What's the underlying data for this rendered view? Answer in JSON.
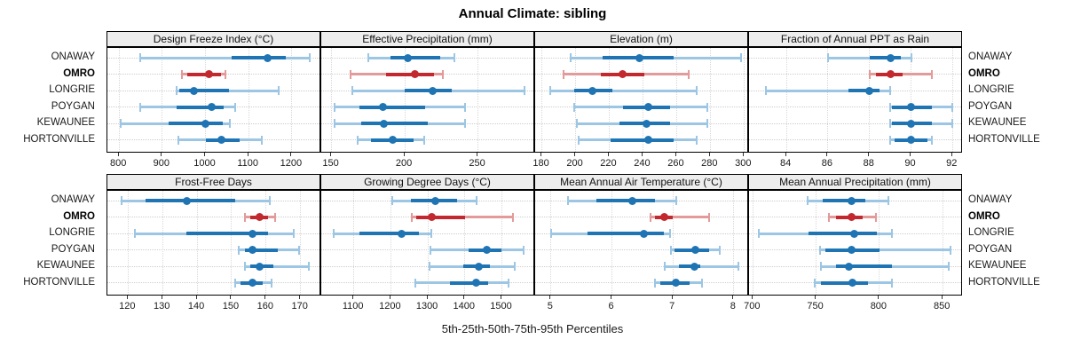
{
  "title": "Annual Climate: sibling",
  "xlabel": "5th-25th-50th-75th-95th Percentiles",
  "sites": [
    "ONAWAY",
    "OMRO",
    "LONGRIE",
    "POYGAN",
    "KEWAUNEE",
    "HORTONVILLE"
  ],
  "highlight_site": "OMRO",
  "colors": {
    "blue_dark": "#1F74B4",
    "blue_light": "#9CC6E3",
    "red_dark": "#C2282D",
    "red_light": "#E39A9A",
    "strip_bg": "#EDEDED",
    "border": "#000000",
    "gridline": "#D8D8D8"
  },
  "chart_data": [
    {
      "type": "percentile-dotplot",
      "label": "Design Freeze Index (°C)",
      "xlim": [
        773,
        1268
      ],
      "ticks": [
        800,
        900,
        1000,
        1100,
        1200
      ],
      "series": [
        {
          "site": "ONAWAY",
          "p5": 848,
          "p25": 1060,
          "p50": 1143,
          "p75": 1186,
          "p95": 1242
        },
        {
          "site": "OMRO",
          "p5": 945,
          "p25": 957,
          "p50": 1008,
          "p75": 1036,
          "p95": 1046
        },
        {
          "site": "LONGRIE",
          "p5": 934,
          "p25": 940,
          "p50": 973,
          "p75": 1055,
          "p95": 1170
        },
        {
          "site": "POYGAN",
          "p5": 848,
          "p25": 934,
          "p50": 1014,
          "p75": 1042,
          "p95": 1068
        },
        {
          "site": "KEWAUNEE",
          "p5": 804,
          "p25": 914,
          "p50": 1000,
          "p75": 1040,
          "p95": 1056
        },
        {
          "site": "HORTONVILLE",
          "p5": 938,
          "p25": 1000,
          "p50": 1037,
          "p75": 1080,
          "p95": 1130
        }
      ]
    },
    {
      "type": "percentile-dotplot",
      "label": "Effective Precipitation (mm)",
      "xlim": [
        143,
        289
      ],
      "ticks": [
        150,
        200,
        250
      ],
      "series": [
        {
          "site": "ONAWAY",
          "p5": 175,
          "p25": 190,
          "p50": 202,
          "p75": 224,
          "p95": 234
        },
        {
          "site": "OMRO",
          "p5": 163,
          "p25": 187,
          "p50": 207,
          "p75": 220,
          "p95": 226
        },
        {
          "site": "LONGRIE",
          "p5": 164,
          "p25": 200,
          "p50": 219,
          "p75": 232,
          "p95": 282
        },
        {
          "site": "POYGAN",
          "p5": 152,
          "p25": 169,
          "p50": 185,
          "p75": 214,
          "p95": 241
        },
        {
          "site": "KEWAUNEE",
          "p5": 152,
          "p25": 170,
          "p50": 186,
          "p75": 216,
          "p95": 241
        },
        {
          "site": "HORTONVILLE",
          "p5": 168,
          "p25": 177,
          "p50": 192,
          "p75": 206,
          "p95": 213
        }
      ]
    },
    {
      "type": "percentile-dotplot",
      "label": "Elevation (m)",
      "xlim": [
        176,
        303
      ],
      "ticks": [
        180,
        200,
        220,
        240,
        260,
        280,
        300
      ],
      "series": [
        {
          "site": "ONAWAY",
          "p5": 197,
          "p25": 216,
          "p50": 238,
          "p75": 258,
          "p95": 298
        },
        {
          "site": "OMRO",
          "p5": 193,
          "p25": 215,
          "p50": 228,
          "p75": 241,
          "p95": 267
        },
        {
          "site": "LONGRIE",
          "p5": 185,
          "p25": 199,
          "p50": 210,
          "p75": 222,
          "p95": 272
        },
        {
          "site": "POYGAN",
          "p5": 199,
          "p25": 228,
          "p50": 243,
          "p75": 256,
          "p95": 278
        },
        {
          "site": "KEWAUNEE",
          "p5": 201,
          "p25": 226,
          "p50": 242,
          "p75": 256,
          "p95": 278
        },
        {
          "site": "HORTONVILLE",
          "p5": 202,
          "p25": 221,
          "p50": 243,
          "p75": 258,
          "p95": 272
        }
      ]
    },
    {
      "type": "percentile-dotplot",
      "label": "Fraction of Annual PPT as Rain",
      "xlim": [
        82.2,
        92.5
      ],
      "ticks": [
        84,
        86,
        88,
        90,
        92
      ],
      "series": [
        {
          "site": "ONAWAY",
          "p5": 86,
          "p25": 88,
          "p50": 89,
          "p75": 89.5,
          "p95": 90
        },
        {
          "site": "OMRO",
          "p5": 88,
          "p25": 88.3,
          "p50": 89,
          "p75": 89.6,
          "p95": 91
        },
        {
          "site": "LONGRIE",
          "p5": 83,
          "p25": 87,
          "p50": 88,
          "p75": 88.5,
          "p95": 89
        },
        {
          "site": "POYGAN",
          "p5": 89,
          "p25": 89.1,
          "p50": 90,
          "p75": 91,
          "p95": 92
        },
        {
          "site": "KEWAUNEE",
          "p5": 89,
          "p25": 89.1,
          "p50": 90,
          "p75": 91,
          "p95": 92
        },
        {
          "site": "HORTONVILLE",
          "p5": 89,
          "p25": 89.2,
          "p50": 90,
          "p75": 90.8,
          "p95": 91
        }
      ]
    },
    {
      "type": "percentile-dotplot",
      "label": "Frost-Free Days",
      "xlim": [
        114,
        176
      ],
      "ticks": [
        120,
        130,
        140,
        150,
        160,
        170
      ],
      "series": [
        {
          "site": "ONAWAY",
          "p5": 118,
          "p25": 125,
          "p50": 137,
          "p75": 151,
          "p95": 161
        },
        {
          "site": "OMRO",
          "p5": 154,
          "p25": 155.5,
          "p50": 158,
          "p75": 160.5,
          "p95": 162.5
        },
        {
          "site": "LONGRIE",
          "p5": 122,
          "p25": 137,
          "p50": 156,
          "p75": 160.5,
          "p95": 168
        },
        {
          "site": "POYGAN",
          "p5": 152,
          "p25": 154,
          "p50": 156,
          "p75": 163.5,
          "p95": 169.5
        },
        {
          "site": "KEWAUNEE",
          "p5": 154,
          "p25": 155.5,
          "p50": 158,
          "p75": 162,
          "p95": 172.5
        },
        {
          "site": "HORTONVILLE",
          "p5": 151,
          "p25": 152.5,
          "p50": 156,
          "p75": 159,
          "p95": 161.5
        }
      ]
    },
    {
      "type": "percentile-dotplot",
      "label": "Growing Degree Days (°C)",
      "xlim": [
        1012,
        1590
      ],
      "ticks": [
        1100,
        1200,
        1300,
        1400,
        1500
      ],
      "series": [
        {
          "site": "ONAWAY",
          "p5": 1205,
          "p25": 1255,
          "p50": 1320,
          "p75": 1380,
          "p95": 1432
        },
        {
          "site": "OMRO",
          "p5": 1256,
          "p25": 1268,
          "p50": 1310,
          "p75": 1400,
          "p95": 1530
        },
        {
          "site": "LONGRIE",
          "p5": 1045,
          "p25": 1115,
          "p50": 1228,
          "p75": 1275,
          "p95": 1310
        },
        {
          "site": "POYGAN",
          "p5": 1307,
          "p25": 1410,
          "p50": 1460,
          "p75": 1500,
          "p95": 1560
        },
        {
          "site": "KEWAUNEE",
          "p5": 1305,
          "p25": 1395,
          "p50": 1438,
          "p75": 1468,
          "p95": 1535
        },
        {
          "site": "HORTONVILLE",
          "p5": 1267,
          "p25": 1360,
          "p50": 1430,
          "p75": 1463,
          "p95": 1517
        }
      ]
    },
    {
      "type": "percentile-dotplot",
      "label": "Mean Annual Air Temperature (°C)",
      "xlim": [
        4.74,
        8.25
      ],
      "ticks": [
        5,
        6,
        7,
        8
      ],
      "series": [
        {
          "site": "ONAWAY",
          "p5": 5.28,
          "p25": 5.75,
          "p50": 6.33,
          "p75": 6.7,
          "p95": 7.05
        },
        {
          "site": "OMRO",
          "p5": 6.63,
          "p25": 6.7,
          "p50": 6.86,
          "p75": 7.0,
          "p95": 7.6
        },
        {
          "site": "LONGRIE",
          "p5": 5.0,
          "p25": 5.6,
          "p50": 6.53,
          "p75": 6.85,
          "p95": 6.95
        },
        {
          "site": "POYGAN",
          "p5": 6.97,
          "p25": 7.02,
          "p50": 7.37,
          "p75": 7.6,
          "p95": 7.77
        },
        {
          "site": "KEWAUNEE",
          "p5": 6.86,
          "p25": 7.1,
          "p50": 7.35,
          "p75": 7.45,
          "p95": 8.08
        },
        {
          "site": "HORTONVILLE",
          "p5": 6.7,
          "p25": 6.8,
          "p50": 7.05,
          "p75": 7.27,
          "p95": 7.48
        }
      ]
    },
    {
      "type": "percentile-dotplot",
      "label": "Mean Annual Precipitation (mm)",
      "xlim": [
        697,
        866
      ],
      "ticks": [
        700,
        750,
        800,
        850
      ],
      "series": [
        {
          "site": "ONAWAY",
          "p5": 743,
          "p25": 755,
          "p50": 778,
          "p75": 789,
          "p95": 807
        },
        {
          "site": "OMRO",
          "p5": 760,
          "p25": 766,
          "p50": 778,
          "p75": 787,
          "p95": 797
        },
        {
          "site": "LONGRIE",
          "p5": 705,
          "p25": 744,
          "p50": 780,
          "p75": 798,
          "p95": 810
        },
        {
          "site": "POYGAN",
          "p5": 753,
          "p25": 757,
          "p50": 778,
          "p75": 800,
          "p95": 856
        },
        {
          "site": "KEWAUNEE",
          "p5": 754,
          "p25": 766,
          "p50": 776,
          "p75": 810,
          "p95": 855
        },
        {
          "site": "HORTONVILLE",
          "p5": 749,
          "p25": 754,
          "p50": 779,
          "p75": 791,
          "p95": 810
        }
      ]
    }
  ]
}
